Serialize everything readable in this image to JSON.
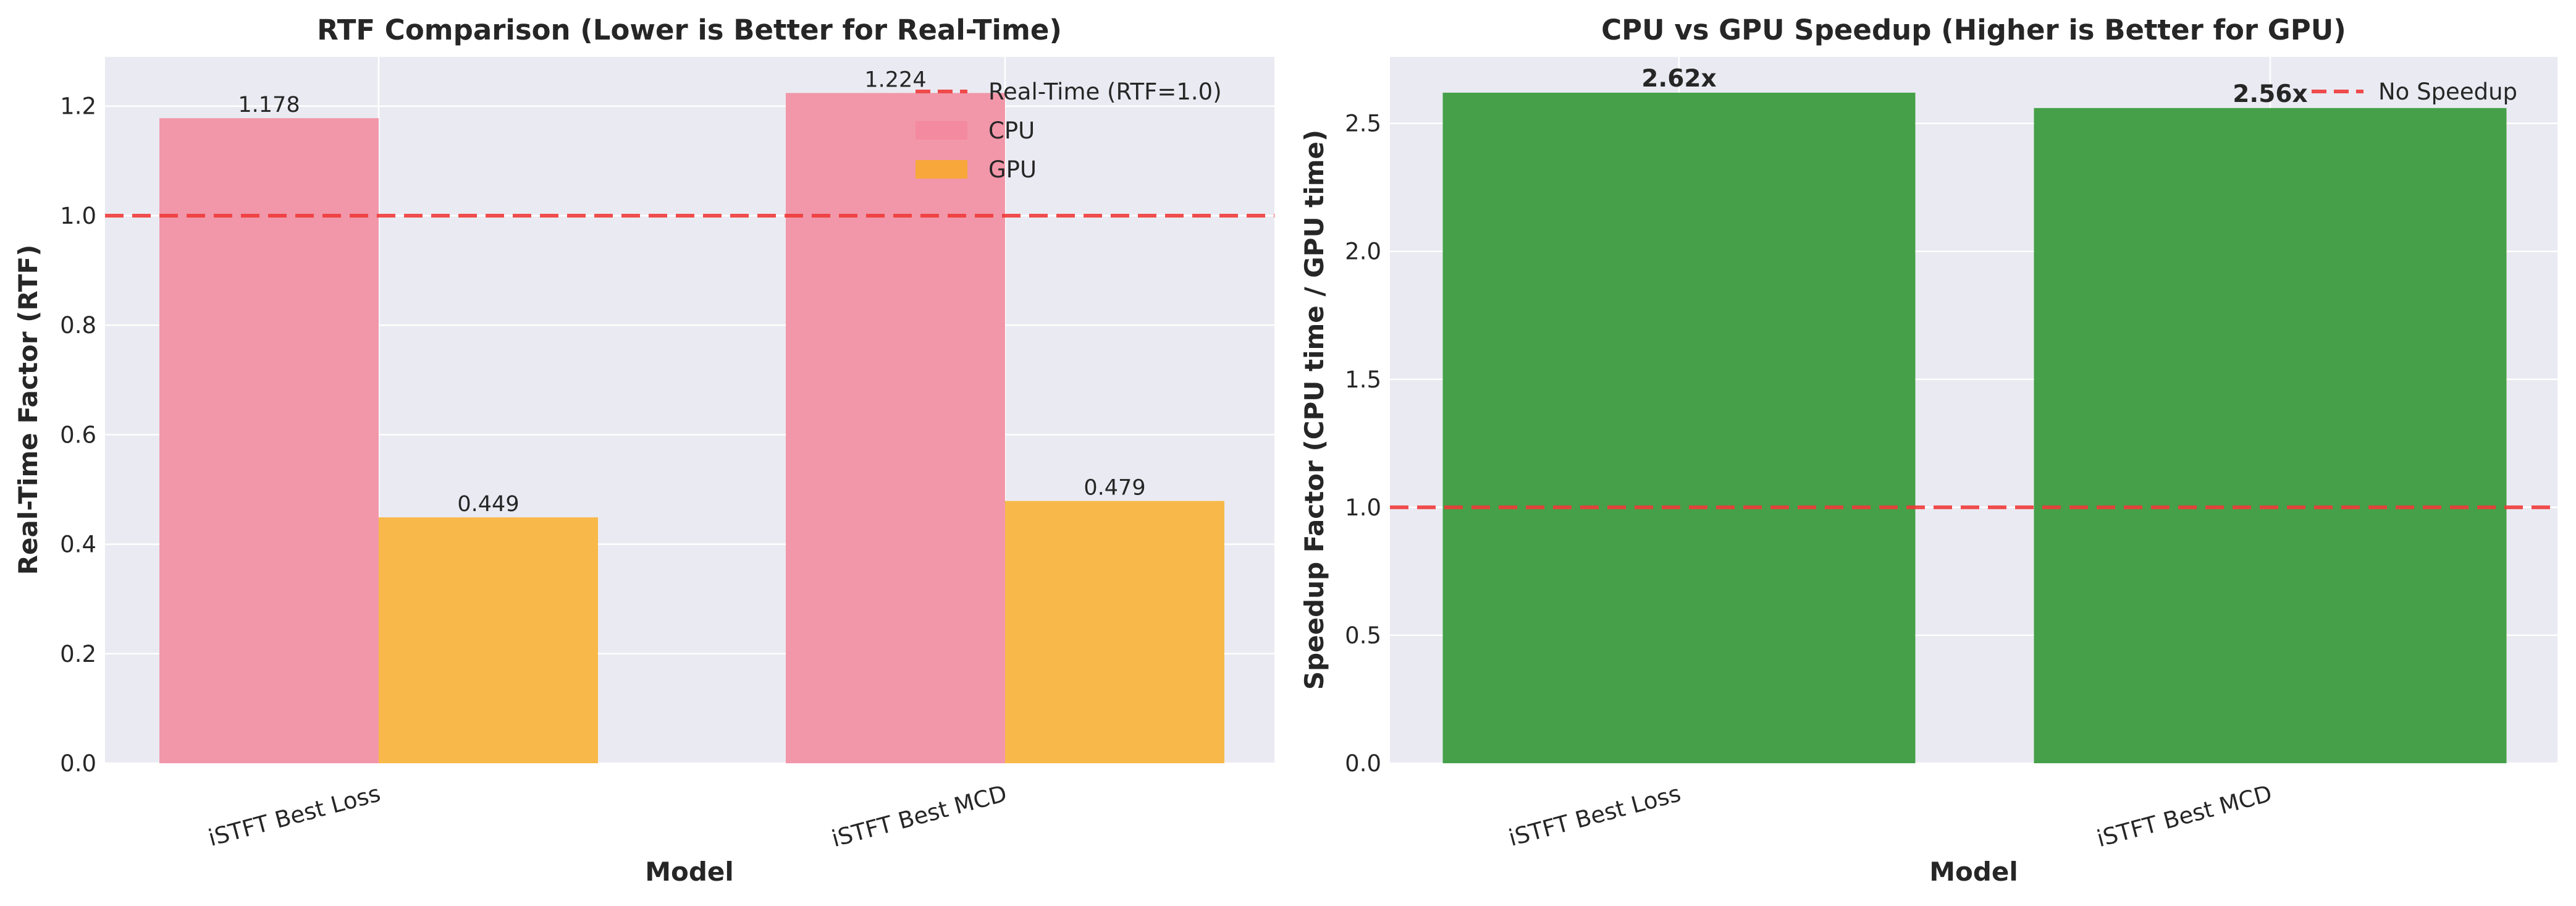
{
  "chart_data": [
    {
      "type": "bar",
      "title": "RTF Comparison (Lower is Better for Real-Time)",
      "xlabel": "Model",
      "ylabel": "Real-Time Factor (RTF)",
      "categories": [
        "iSTFT Best Loss",
        "iSTFT Best MCD"
      ],
      "series": [
        {
          "name": "CPU",
          "values": [
            1.178,
            1.224
          ],
          "color": "#f197a9",
          "labels": [
            "1.178",
            "1.224"
          ]
        },
        {
          "name": "GPU",
          "values": [
            0.449,
            0.479
          ],
          "color": "#f8b94a",
          "labels": [
            "0.449",
            "0.479"
          ]
        }
      ],
      "reference_line": {
        "label": "Real-Time (RTF=1.0)",
        "value": 1.0,
        "color": "#f03a3a"
      },
      "ylim": [
        0,
        1.29
      ],
      "yticks": [
        "0.0",
        "0.2",
        "0.4",
        "0.6",
        "0.8",
        "1.0",
        "1.2"
      ],
      "ytick_values": [
        0,
        0.2,
        0.4,
        0.6,
        0.8,
        1.0,
        1.2
      ],
      "legend_position": "top-right",
      "grid": true,
      "background": "#eaeaf2"
    },
    {
      "type": "bar",
      "title": "CPU vs GPU Speedup (Higher is Better for GPU)",
      "xlabel": "Model",
      "ylabel": "Speedup Factor (CPU time / GPU time)",
      "categories": [
        "iSTFT Best Loss",
        "iSTFT Best MCD"
      ],
      "series": [
        {
          "values": [
            2.62,
            2.56
          ],
          "color": "#46a049",
          "labels": [
            "2.62x",
            "2.56x"
          ]
        }
      ],
      "reference_line": {
        "label": "No Speedup",
        "value": 1.0,
        "color": "#f03a3a"
      },
      "ylim": [
        0,
        2.76
      ],
      "yticks": [
        "0.0",
        "0.5",
        "1.0",
        "1.5",
        "2.0",
        "2.5"
      ],
      "ytick_values": [
        0,
        0.5,
        1.0,
        1.5,
        2.0,
        2.5
      ],
      "legend_position": "top-right",
      "grid": true,
      "background": "#eaeaf2"
    }
  ]
}
